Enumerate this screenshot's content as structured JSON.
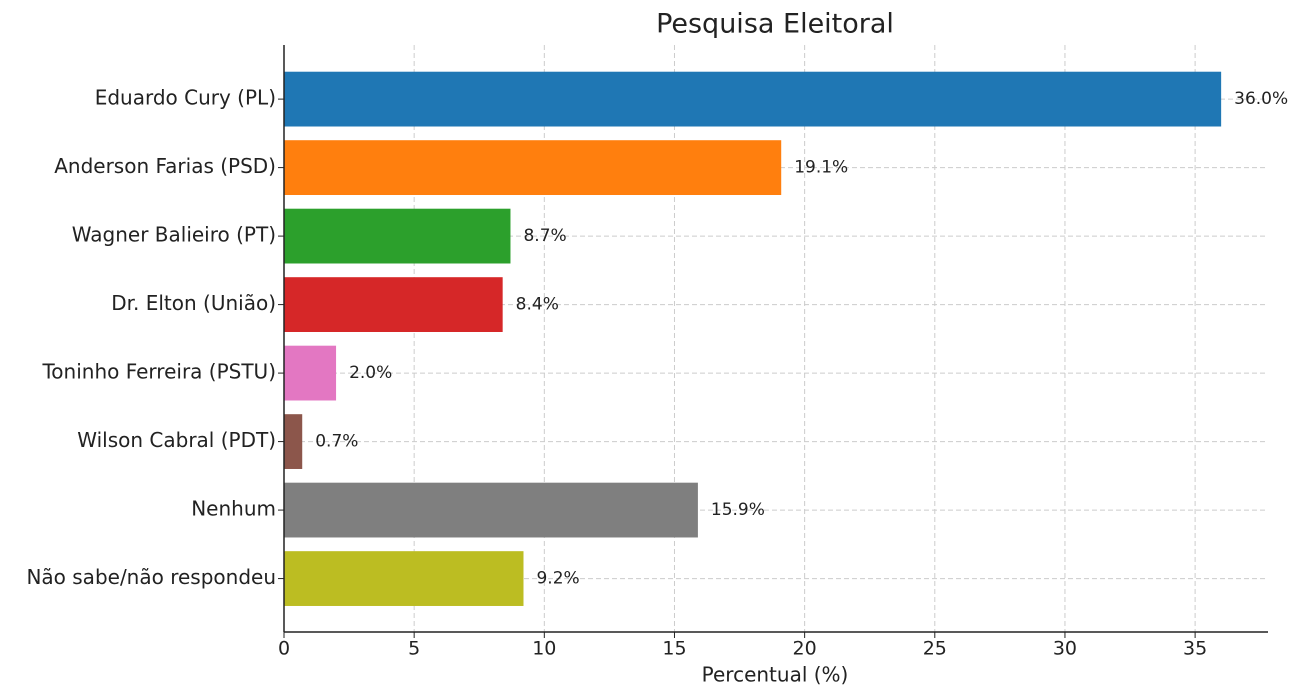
{
  "chart_data": {
    "type": "barh",
    "title": "Pesquisa Eleitoral",
    "xlabel": "Percentual (%)",
    "categories": [
      "Eduardo Cury (PL)",
      "Anderson Farias (PSD)",
      "Wagner Balieiro (PT)",
      "Dr. Elton (União)",
      "Toninho Ferreira (PSTU)",
      "Wilson Cabral (PDT)",
      "Nenhum",
      "Não sabe/não respondeu"
    ],
    "values": [
      36.0,
      19.1,
      8.7,
      8.4,
      2.0,
      0.7,
      15.9,
      9.2
    ],
    "value_labels": [
      "36.0%",
      "19.1%",
      "8.7%",
      "8.4%",
      "2.0%",
      "0.7%",
      "15.9%",
      "9.2%"
    ],
    "colors": [
      "#1f77b4",
      "#ff7f0e",
      "#2ca02c",
      "#d62728",
      "#e377c2",
      "#8c564b",
      "#7f7f7f",
      "#bcbd22"
    ],
    "xlim": [
      0,
      37.8
    ],
    "xticks": [
      0,
      5,
      10,
      15,
      20,
      25,
      30,
      35
    ],
    "grid": true
  }
}
